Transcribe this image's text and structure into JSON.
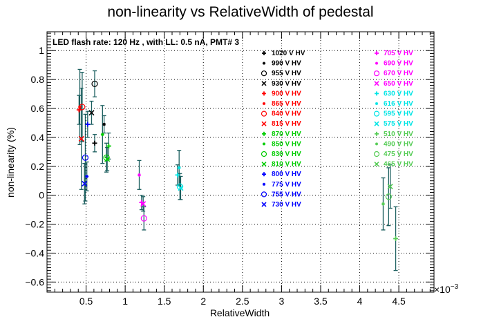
{
  "chart_data": {
    "type": "scatter",
    "title": "non-linearity vs RelativeWidth of pedestal",
    "xlabel": "RelativeWidth",
    "ylabel": "non-linearity (%)",
    "x_exponent_label": "×10",
    "x_exponent_power": "−3",
    "annotation": "LED flash rate: 120 Hz , with LL: 0.5 nA, PMT# 3",
    "xlim": [
      0.0,
      4.95
    ],
    "ylim": [
      -0.67,
      1.13
    ],
    "x_ticks": [
      {
        "value": 0.5,
        "label": "0.5"
      },
      {
        "value": 1.0,
        "label": "1"
      },
      {
        "value": 1.5,
        "label": "1.5"
      },
      {
        "value": 2.0,
        "label": "2"
      },
      {
        "value": 2.5,
        "label": "2.5"
      },
      {
        "value": 3.0,
        "label": "3"
      },
      {
        "value": 3.5,
        "label": "3.5"
      },
      {
        "value": 4.0,
        "label": "4"
      },
      {
        "value": 4.5,
        "label": "4.5"
      }
    ],
    "y_ticks": [
      {
        "value": -0.6,
        "label": "−0.6"
      },
      {
        "value": -0.4,
        "label": "−0.4"
      },
      {
        "value": -0.2,
        "label": "−0.2"
      },
      {
        "value": 0.0,
        "label": "0"
      },
      {
        "value": 0.2,
        "label": "0.2"
      },
      {
        "value": 0.4,
        "label": "0.4"
      },
      {
        "value": 0.6,
        "label": "0.6"
      },
      {
        "value": 0.8,
        "label": "0.8"
      },
      {
        "value": 1.0,
        "label": "1"
      }
    ],
    "grid": true,
    "error_bar_color": "#1a5e5e",
    "legend_left": [
      {
        "name": "1020 V HV",
        "marker": "plus",
        "color": "#000000"
      },
      {
        "name": "990 V HV",
        "marker": "star",
        "color": "#000000"
      },
      {
        "name": "955 V HV",
        "marker": "circle",
        "color": "#000000"
      },
      {
        "name": "930 V HV",
        "marker": "x",
        "color": "#000000"
      },
      {
        "name": "900 V HV",
        "marker": "plus",
        "color": "#ff0000"
      },
      {
        "name": "865 V HV",
        "marker": "star",
        "color": "#ff0000"
      },
      {
        "name": "840 V HV",
        "marker": "circle",
        "color": "#ff0000"
      },
      {
        "name": "815 V HV",
        "marker": "x",
        "color": "#ff0000"
      },
      {
        "name": "870 V HV",
        "marker": "plus",
        "color": "#00cc00"
      },
      {
        "name": "850 V HV",
        "marker": "star",
        "color": "#00cc00"
      },
      {
        "name": "830 V HV",
        "marker": "circle",
        "color": "#00cc00"
      },
      {
        "name": "810 V HV",
        "marker": "x",
        "color": "#00cc00"
      },
      {
        "name": "800 V HV",
        "marker": "plus",
        "color": "#0000ff"
      },
      {
        "name": "775 V HV",
        "marker": "star",
        "color": "#0000ff"
      },
      {
        "name": "755 V HV",
        "marker": "circle",
        "color": "#0000ff"
      },
      {
        "name": "730 V HV",
        "marker": "x",
        "color": "#0000ff"
      }
    ],
    "legend_right": [
      {
        "name": "705 V HV",
        "marker": "plus",
        "color": "#ff00ff"
      },
      {
        "name": "690 V HV",
        "marker": "star",
        "color": "#ff00ff"
      },
      {
        "name": "670 V HV",
        "marker": "circle",
        "color": "#ff00ff"
      },
      {
        "name": "650 V HV",
        "marker": "x",
        "color": "#ff00ff"
      },
      {
        "name": "630 V HV",
        "marker": "plus",
        "color": "#00e5e5"
      },
      {
        "name": "616 V HV",
        "marker": "star",
        "color": "#00e5e5"
      },
      {
        "name": "595 V HV",
        "marker": "circle",
        "color": "#00e5e5"
      },
      {
        "name": "575 V HV",
        "marker": "x",
        "color": "#00e5e5"
      },
      {
        "name": "510 V HV",
        "marker": "plus",
        "color": "#55cc55"
      },
      {
        "name": "490 V HV",
        "marker": "star",
        "color": "#55cc55"
      },
      {
        "name": "475 V HV",
        "marker": "circle",
        "color": "#55cc55"
      },
      {
        "name": "465 V HV",
        "marker": "x",
        "color": "#55cc55"
      }
    ],
    "points": [
      {
        "series": "1020 V HV",
        "x": 0.61,
        "y": 0.36,
        "err": 0.06
      },
      {
        "series": "990 V HV",
        "x": 0.73,
        "y": 0.49,
        "err": 0.06
      },
      {
        "series": "955 V HV",
        "x": 0.61,
        "y": 0.77,
        "err": 0.09
      },
      {
        "series": "930 V HV",
        "x": 0.57,
        "y": 0.57,
        "err": 0.08
      },
      {
        "series": "900 V HV",
        "x": 0.41,
        "y": 0.59,
        "err": 0.1
      },
      {
        "series": "865 V HV",
        "x": 0.42,
        "y": 0.61,
        "err": 0.26
      },
      {
        "series": "840 V HV",
        "x": 0.45,
        "y": 0.61,
        "err": 0.24
      },
      {
        "series": "815 V HV",
        "x": 0.44,
        "y": 0.39,
        "err": 0.35
      },
      {
        "series": "870 V HV",
        "x": 0.79,
        "y": 0.34,
        "err": 0.09
      },
      {
        "series": "850 V HV",
        "x": 0.71,
        "y": 0.42,
        "err": 0.2
      },
      {
        "series": "830 V HV",
        "x": 0.76,
        "y": 0.26,
        "err": 0.1
      },
      {
        "series": "810 V HV",
        "x": 0.77,
        "y": 0.25,
        "err": 0.08
      },
      {
        "series": "800 V HV",
        "x": 0.52,
        "y": 0.49,
        "err": 0.09
      },
      {
        "series": "775 V HV",
        "x": 0.51,
        "y": 0.13,
        "err": 0.1
      },
      {
        "series": "755 V HV",
        "x": 0.49,
        "y": 0.26,
        "err": 0.3
      },
      {
        "series": "730 V HV",
        "x": 0.48,
        "y": 0.08,
        "err": 0.14
      },
      {
        "series": "705 V HV",
        "x": 1.21,
        "y": -0.05,
        "err": 0.05
      },
      {
        "series": "690 V HV",
        "x": 1.18,
        "y": 0.14,
        "err": 0.1
      },
      {
        "series": "670 V HV",
        "x": 1.24,
        "y": -0.16,
        "err": 0.08
      },
      {
        "series": "650 V HV",
        "x": 1.23,
        "y": -0.06,
        "err": 0.05
      },
      {
        "series": "630 V HV",
        "x": 1.67,
        "y": 0.14,
        "err": 0.07
      },
      {
        "series": "616 V HV",
        "x": 1.69,
        "y": 0.19,
        "err": 0.12
      },
      {
        "series": "595 V HV",
        "x": 1.7,
        "y": 0.06,
        "err": 0.09
      },
      {
        "series": "575 V HV",
        "x": 1.71,
        "y": 0.05,
        "err": 0.08
      },
      {
        "series": "510 V HV",
        "x": 4.46,
        "y": -0.3,
        "err": 0.22
      },
      {
        "series": "490 V HV",
        "x": 4.3,
        "y": -0.06,
        "err": 0.18
      },
      {
        "series": "475 V HV",
        "x": 4.37,
        "y": -0.01,
        "err": 0.2
      },
      {
        "series": "465 V HV",
        "x": 4.39,
        "y": 0.06,
        "err": 0.15
      }
    ]
  }
}
